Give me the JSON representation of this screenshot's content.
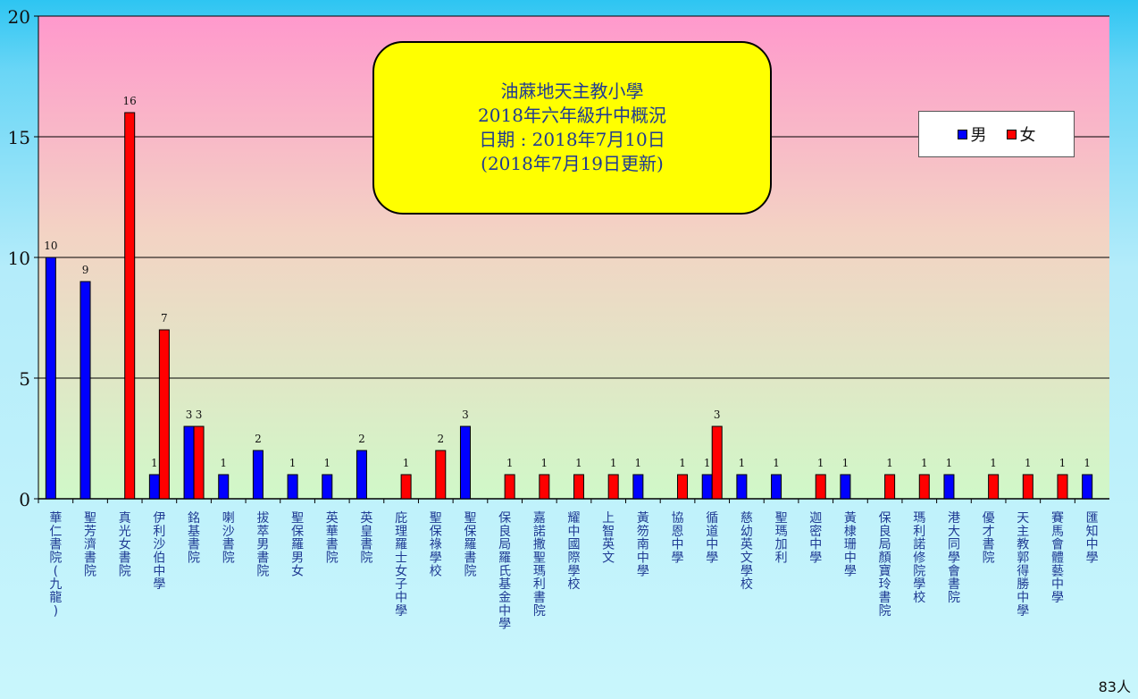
{
  "chart_data": {
    "type": "bar",
    "title_lines": [
      "油蔴地天主教小學",
      "2018年六年級升中概況",
      "日期 : 2018年7月10日",
      "(2018年7月19日更新)"
    ],
    "ylim": [
      0,
      20
    ],
    "yticks": [
      "0",
      "5",
      "10",
      "15",
      "20"
    ],
    "legend": {
      "position": "top-right"
    },
    "categories": [
      "華仁書院(九龍)",
      "聖芳濟書院",
      "真光女書院",
      "伊利沙伯中學",
      "銘基書院",
      "喇沙書院",
      "拔萃男書院",
      "聖保羅男女",
      "英華書院",
      "英皇書院",
      "庇理羅士女子中學",
      "聖保祿學校",
      "聖保羅書院",
      "保良局羅氏基金中學",
      "嘉諾撒聖瑪利書院",
      "耀中國際學校",
      "上智英文",
      "黃笏南中學",
      "協恩中學",
      "循道中學",
      "慈幼英文學校",
      "聖瑪加利",
      "迦密中學",
      "黃棣珊中學",
      "保良局顏寶玲書院",
      "瑪利諾修院學校",
      "港大同學會書院",
      "優才書院",
      "天主教郭得勝中學",
      "賽馬會體藝中學",
      "匯知中學"
    ],
    "series": [
      {
        "name": "男",
        "color": "#0000ff",
        "values": [
          10,
          9,
          0,
          1,
          3,
          1,
          2,
          1,
          1,
          2,
          0,
          0,
          3,
          0,
          0,
          0,
          0,
          1,
          0,
          1,
          1,
          1,
          0,
          1,
          0,
          0,
          1,
          0,
          0,
          0,
          1
        ]
      },
      {
        "name": "女",
        "color": "#ff0000",
        "values": [
          0,
          0,
          16,
          7,
          3,
          0,
          0,
          0,
          0,
          0,
          1,
          2,
          0,
          1,
          1,
          1,
          1,
          0,
          1,
          3,
          0,
          0,
          1,
          0,
          1,
          1,
          0,
          1,
          1,
          1,
          0
        ]
      }
    ],
    "total_label": "83人"
  }
}
